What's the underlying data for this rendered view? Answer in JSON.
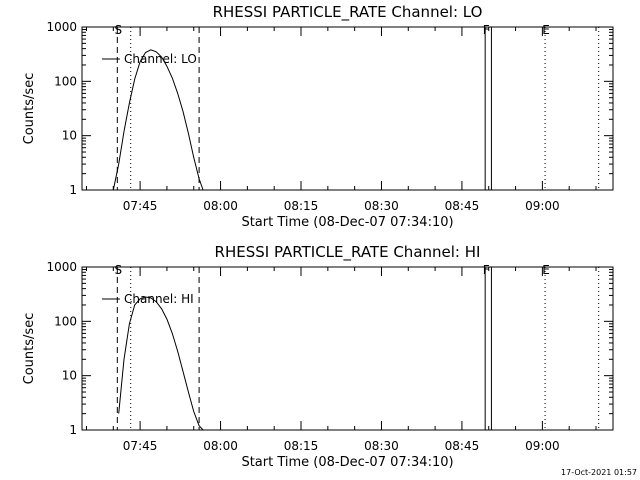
{
  "chart_data": [
    {
      "type": "line",
      "title": "RHESSI PARTICLE_RATE Channel: LO",
      "xlabel": "Start Time (08-Dec-07 07:34:10)",
      "ylabel": "Counts/sec",
      "yscale": "log",
      "ylim": [
        1,
        1000
      ],
      "xlim": [
        "07:34:10",
        "09:13:10"
      ],
      "xticks": [
        "07:45",
        "08:00",
        "08:15",
        "08:30",
        "08:45",
        "09:00"
      ],
      "yticks": [
        "1",
        "10",
        "100",
        "1000"
      ],
      "grid": false,
      "legend": "top-left",
      "series": [
        {
          "name": "Channel: LO",
          "time": [
            "07:40:00",
            "07:41:00",
            "07:42:00",
            "07:43:00",
            "07:44:00",
            "07:45:00",
            "07:46:00",
            "07:47:00",
            "07:48:00",
            "07:49:00",
            "07:50:00",
            "07:51:00",
            "07:52:00",
            "07:53:00",
            "07:54:00",
            "07:55:00",
            "07:56:00",
            "07:56:45"
          ],
          "values": [
            1,
            3,
            12,
            40,
            110,
            230,
            340,
            380,
            350,
            280,
            190,
            115,
            60,
            28,
            11,
            4,
            1.6,
            1
          ]
        }
      ],
      "markers": [
        {
          "label": "S",
          "time": "07:40:45",
          "style": "dashed"
        },
        {
          "label": "",
          "time": "07:56:00",
          "style": "dashed"
        },
        {
          "label": "",
          "time": "07:43:15",
          "style": "dotted"
        },
        {
          "label": "F",
          "time": "08:49:20",
          "style": "solid"
        },
        {
          "label": "",
          "time": "08:50:30",
          "style": "solid"
        },
        {
          "label": "E",
          "time": "09:00:30",
          "style": "dotted"
        },
        {
          "label": "",
          "time": "09:10:30",
          "style": "dotted"
        }
      ]
    },
    {
      "type": "line",
      "title": "RHESSI PARTICLE_RATE Channel: HI",
      "xlabel": "Start Time (08-Dec-07 07:34:10)",
      "ylabel": "Counts/sec",
      "yscale": "log",
      "ylim": [
        1,
        1000
      ],
      "xlim": [
        "07:34:10",
        "09:13:10"
      ],
      "xticks": [
        "07:45",
        "08:00",
        "08:15",
        "08:30",
        "08:45",
        "09:00"
      ],
      "yticks": [
        "1",
        "10",
        "100",
        "1000"
      ],
      "grid": false,
      "legend": "top-left",
      "series": [
        {
          "name": "Channel: HI",
          "time": [
            "07:41:00",
            "07:42:00",
            "07:43:00",
            "07:44:00",
            "07:45:00",
            "07:46:00",
            "07:47:00",
            "07:48:00",
            "07:49:00",
            "07:50:00",
            "07:51:00",
            "07:52:00",
            "07:53:00",
            "07:54:00",
            "07:55:00",
            "07:56:00",
            "07:56:45"
          ],
          "values": [
            2,
            20,
            90,
            200,
            260,
            280,
            270,
            230,
            170,
            110,
            60,
            28,
            12,
            5,
            2.2,
            1.2,
            1
          ]
        }
      ],
      "markers": [
        {
          "label": "S",
          "time": "07:40:45",
          "style": "dashed"
        },
        {
          "label": "",
          "time": "07:56:00",
          "style": "dashed"
        },
        {
          "label": "",
          "time": "07:43:15",
          "style": "dotted"
        },
        {
          "label": "F",
          "time": "08:49:20",
          "style": "solid"
        },
        {
          "label": "",
          "time": "08:50:30",
          "style": "solid"
        },
        {
          "label": "E",
          "time": "09:00:30",
          "style": "dotted"
        },
        {
          "label": "",
          "time": "09:10:30",
          "style": "dotted"
        }
      ]
    }
  ],
  "footer": {
    "date_stamp": "17-Oct-2021 01:57"
  }
}
